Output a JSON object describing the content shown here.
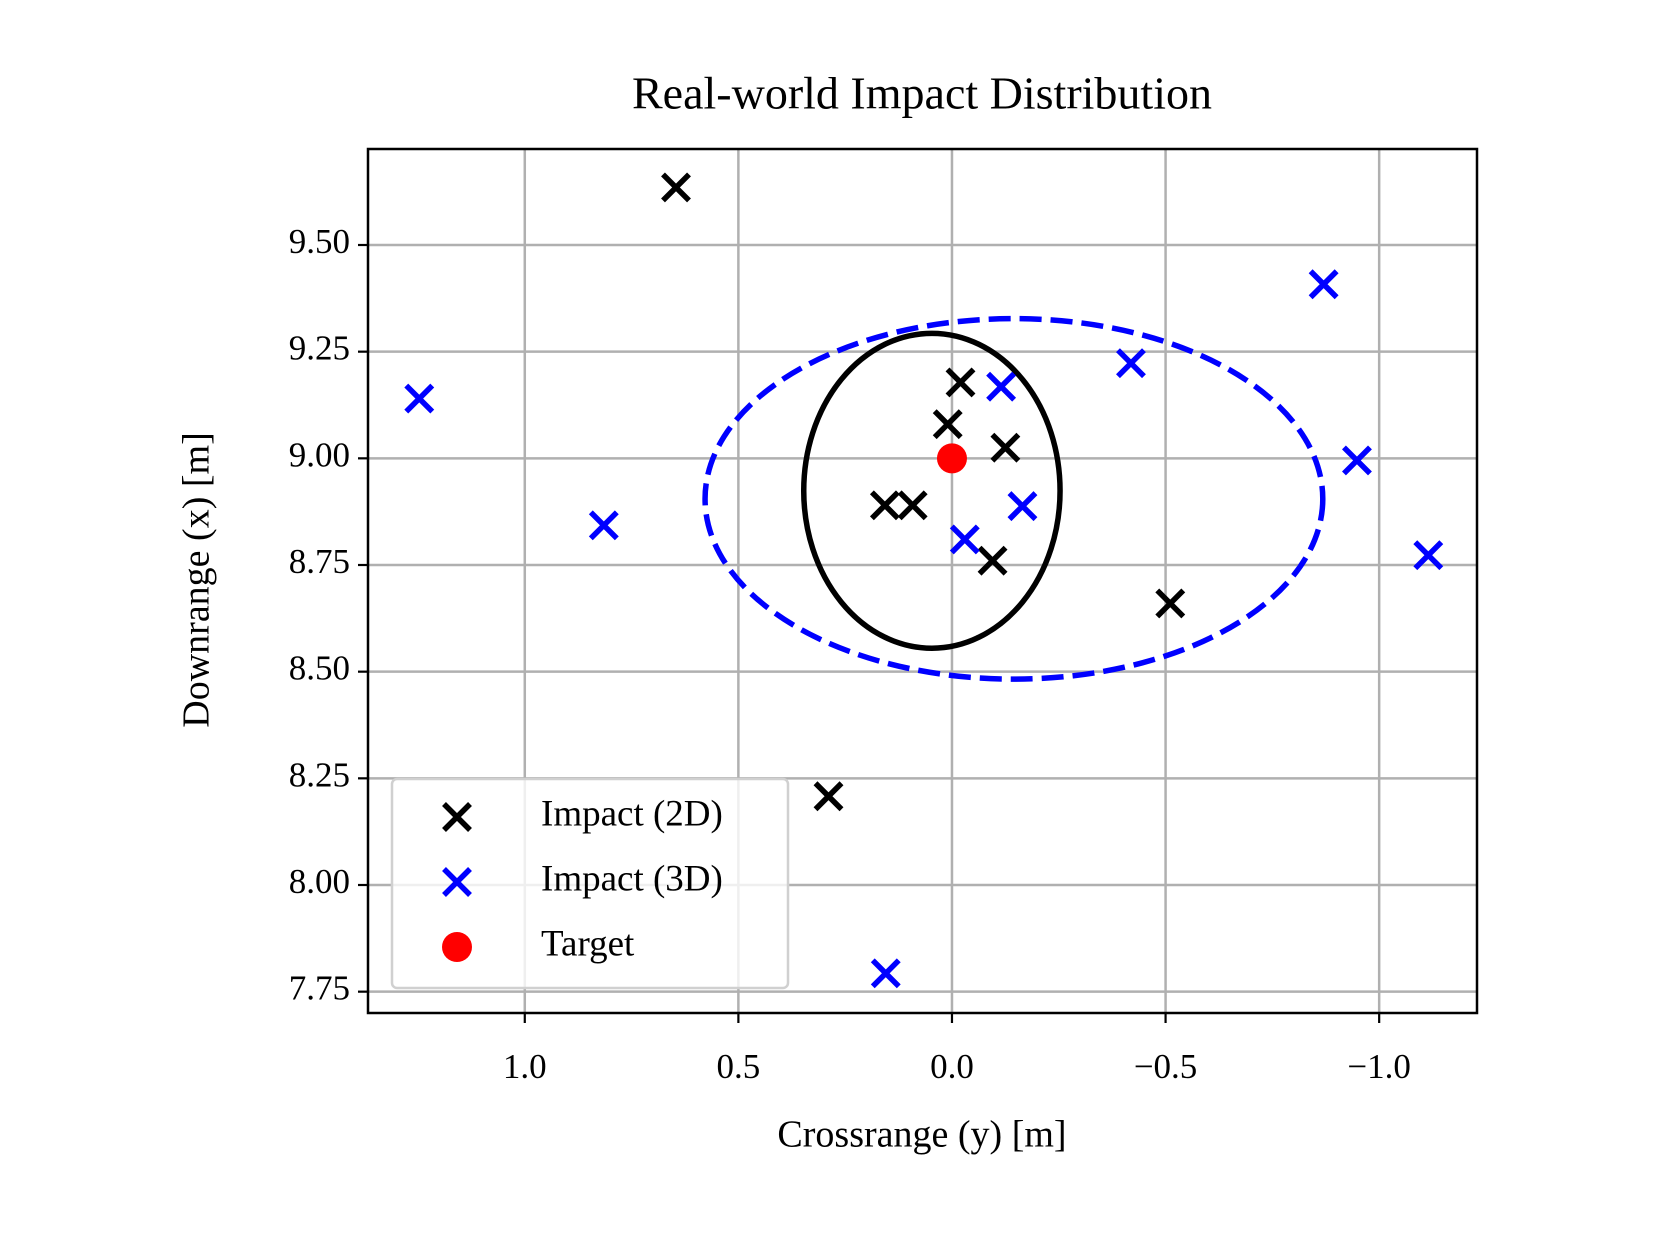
{
  "chart_data": {
    "type": "scatter",
    "title": "Real-world Impact Distribution",
    "x_label": "Crossrange (y) [m]",
    "y_label": "Downrange (x) [m]",
    "xlim": [
      1.367,
      -1.229
    ],
    "ylim": [
      7.7,
      9.725
    ],
    "xticks": [
      {
        "value": 1,
        "label": "1.0"
      },
      {
        "value": 0.5,
        "label": "0.5"
      },
      {
        "value": 0,
        "label": "0.0"
      },
      {
        "value": -0.5,
        "label": "−0.5"
      },
      {
        "value": -1,
        "label": "−1.0"
      }
    ],
    "yticks": [
      7.75,
      {
        "value": 8,
        "label": "8.00"
      },
      8.25,
      {
        "value": 8.5,
        "label": "8.50"
      },
      8.75,
      {
        "value": 9,
        "label": "9.00"
      },
      9.25,
      {
        "value": 9.5,
        "label": "9.50"
      }
    ],
    "grid": true,
    "legend": "lower left",
    "series": [
      {
        "name": "Impact (2D)",
        "color": "#000000",
        "marker": "x",
        "x": [
          0.646,
          -0.02,
          0.01,
          -0.125,
          0.157,
          0.092,
          -0.095,
          -0.511,
          0.289
        ],
        "values": [
          9.635,
          9.178,
          9.08,
          9.025,
          8.89,
          8.89,
          8.76,
          8.66,
          8.208
        ]
      },
      {
        "name": "Impact (3D)",
        "color": "#0000ff",
        "marker": "x",
        "x": [
          1.247,
          0.815,
          -0.115,
          -0.165,
          -0.03,
          -0.419,
          -0.87,
          -0.948,
          -1.115,
          0.155
        ],
        "values": [
          9.14,
          8.843,
          9.168,
          8.888,
          8.81,
          9.223,
          9.408,
          8.995,
          8.773,
          7.793
        ]
      },
      {
        "name": "Target",
        "color": "#ff0000",
        "marker": "o",
        "x": [
          0
        ],
        "values": [
          9
        ]
      }
    ],
    "ellipses": [
      {
        "color": "#000000",
        "style": "solid",
        "center": [
          0.047,
          8.924
        ],
        "radii": [
          0.3,
          0.369
        ]
      },
      {
        "color": "#0000ff",
        "style": "dashed",
        "center": [
          -0.145,
          8.905
        ],
        "radii": [
          0.723,
          0.4225
        ]
      }
    ]
  }
}
